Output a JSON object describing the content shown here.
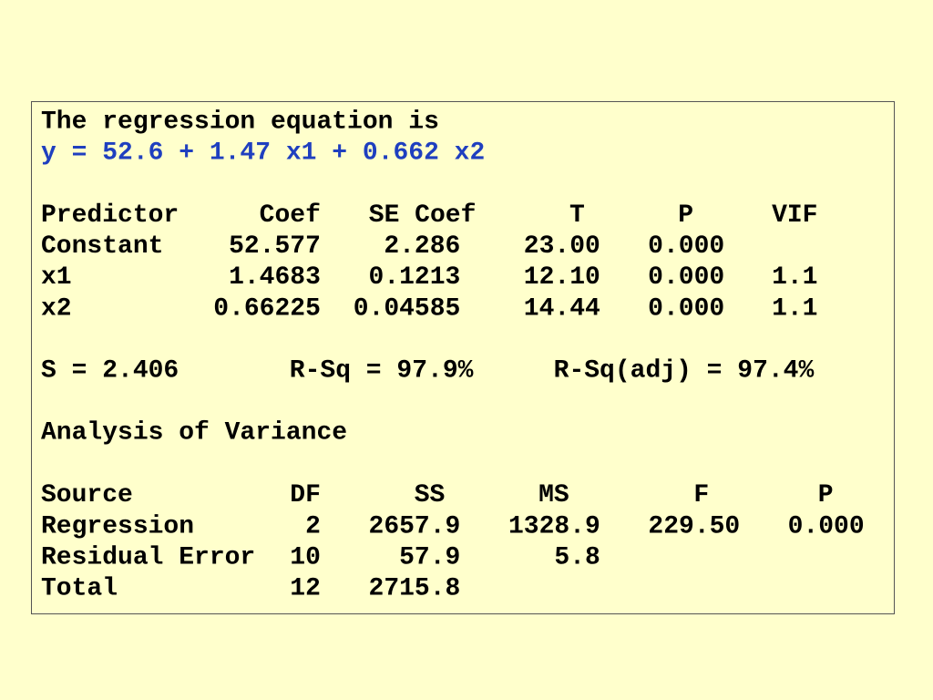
{
  "regression": {
    "title": "The regression equation is",
    "equation": "y = 52.6 + 1.47 x1 + 0.662 x2"
  },
  "coefficients": {
    "header": [
      "Predictor",
      "Coef",
      "SE Coef",
      "T",
      "P",
      "VIF"
    ],
    "rows": [
      [
        "Constant",
        "52.577",
        "2.286",
        "23.00",
        "0.000"
      ],
      [
        "x1",
        "1.4683",
        "0.1213",
        "12.10",
        "0.000",
        "1.1"
      ],
      [
        "x2",
        "0.66225",
        "0.04585",
        "14.44",
        "0.000",
        "1.1"
      ]
    ]
  },
  "summary": [
    "S = 2.406",
    "R-Sq = 97.9%",
    "R-Sq(adj) = 97.4%"
  ],
  "anova": {
    "title": "Analysis of Variance",
    "header": [
      "Source",
      "DF",
      "SS",
      "MS",
      "F",
      "P"
    ],
    "rows": [
      [
        "Regression",
        "2",
        "2657.9",
        "1328.9",
        "229.50",
        "0.000"
      ],
      [
        "Residual Error",
        "10",
        "57.9",
        "5.8"
      ],
      [
        "Total",
        "12",
        "2715.8"
      ]
    ]
  }
}
